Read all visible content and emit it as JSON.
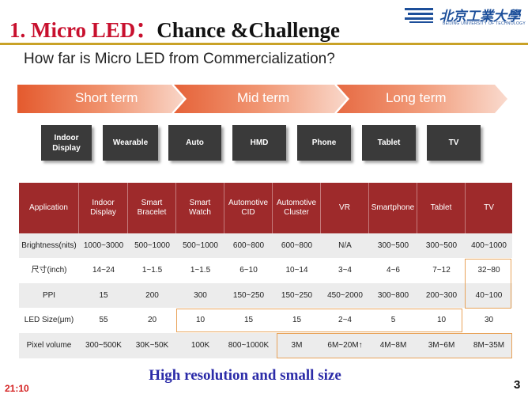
{
  "header": {
    "title_prefix": "1. Micro LED：",
    "title_suffix": "Chance &Challenge",
    "logo_text": "北京工業大學",
    "logo_subtext": "BEIJING UNIVERSITY OF TECHNOLOGY"
  },
  "question": "How far is Micro LED from Commercialization?",
  "timeline": {
    "phases": [
      "Short term",
      "Mid term",
      "Long term"
    ]
  },
  "categories": [
    "Indoor\nDisplay",
    "Wearable",
    "Auto",
    "HMD",
    "Phone",
    "Tablet",
    "TV"
  ],
  "table": {
    "headers": [
      "Application",
      "Indoor\nDisplay",
      "Smart\nBracelet",
      "Smart\nWatch",
      "Automotive\nCID",
      "Automotive\nCluster",
      "VR",
      "Smartphone",
      "Tablet",
      "TV"
    ],
    "rows": [
      [
        "Brightness(nits)",
        "1000~3000",
        "500~1000",
        "500~1000",
        "600~800",
        "600~800",
        "N/A",
        "300~500",
        "300~500",
        "400~1000"
      ],
      [
        "尺寸(inch)",
        "14~24",
        "1~1.5",
        "1~1.5",
        "6~10",
        "10~14",
        "3~4",
        "4~6",
        "7~12",
        "32~80"
      ],
      [
        "PPI",
        "15",
        "200",
        "300",
        "150~250",
        "150~250",
        "450~2000",
        "300~800",
        "200~300",
        "40~100"
      ],
      [
        "LED Size(μm)",
        "55",
        "20",
        "10",
        "15",
        "15",
        "2~4",
        "5",
        "10",
        "30"
      ],
      [
        "Pixel volume",
        "300~500K",
        "30K~50K",
        "100K",
        "800~1000K",
        "3M",
        "6M~20M↑",
        "4M~8M",
        "3M~6M",
        "8M~35M"
      ]
    ]
  },
  "caption": "High resolution and small size",
  "timecode": "21:10",
  "page_number": "3",
  "colors": {
    "title_red": "#c8102e",
    "timeline_orange": "#e8734a",
    "table_header": "#9e2a2b",
    "category_box": "#3a3a3a",
    "caption_blue": "#2b2ba8",
    "highlight": "#e8a35a"
  }
}
